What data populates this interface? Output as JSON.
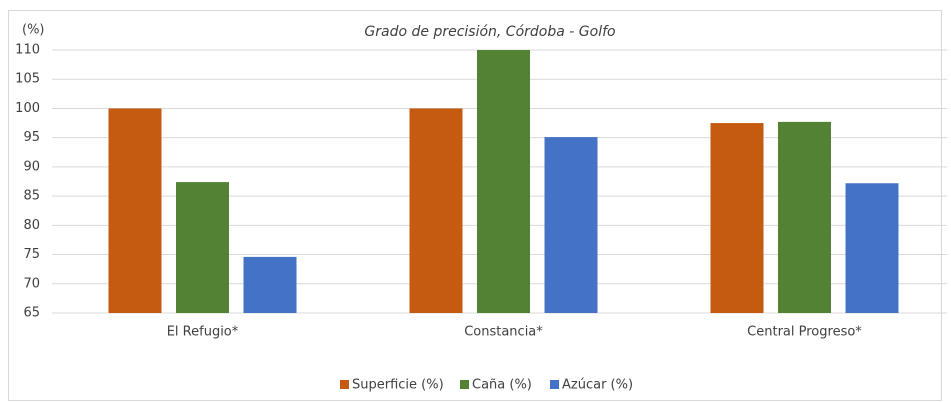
{
  "chart_data": {
    "type": "bar",
    "title": "Grado de precisión, Córdoba - Golfo",
    "y_label": "(%)",
    "categories": [
      "El Refugio*",
      "Constancia*",
      "Central Progreso*"
    ],
    "series": [
      {
        "name": "Superficie (%)",
        "color": "#c55a11",
        "values": [
          100,
          100,
          97.5
        ]
      },
      {
        "name": "Caña (%)",
        "color": "#548235",
        "values": [
          87.4,
          110,
          97.7
        ]
      },
      {
        "name": "Azúcar (%)",
        "color": "#4472c4",
        "values": [
          74.6,
          95.1,
          87.2
        ]
      }
    ],
    "ylim": [
      65,
      110
    ],
    "yticks": [
      65,
      70,
      75,
      80,
      85,
      90,
      95,
      100,
      105,
      110
    ],
    "grid": true,
    "legend": "bottom"
  }
}
